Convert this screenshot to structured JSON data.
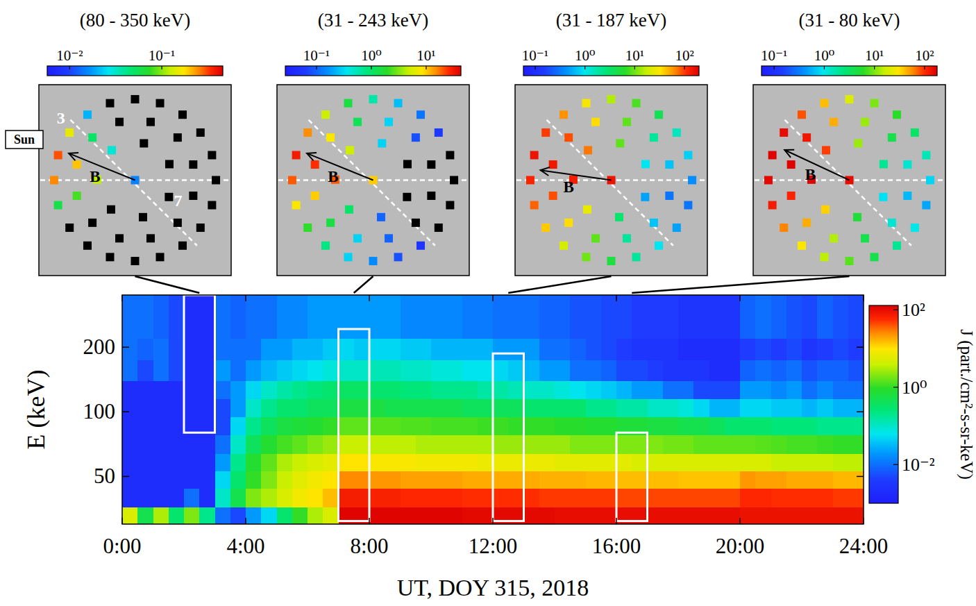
{
  "chart_data": [
    {
      "type": "heatmap",
      "xlabel": "UT, DOY 315, 2018",
      "ylabel": "E (keV)",
      "log": "y",
      "xlim": [
        0,
        24
      ],
      "xticks": [
        {
          "value": 0,
          "label": "0:00"
        },
        {
          "value": 4,
          "label": "4:00"
        },
        {
          "value": 8,
          "label": "8:00"
        },
        {
          "value": 12,
          "label": "12:00"
        },
        {
          "value": 16,
          "label": "16:00"
        },
        {
          "value": 20,
          "label": "20:00"
        },
        {
          "value": 24,
          "label": "24:00"
        }
      ],
      "ylim": [
        30,
        350
      ],
      "yticks": [
        50,
        100,
        200
      ],
      "x_edges": [
        0,
        0.5,
        1,
        1.5,
        2,
        2.5,
        3,
        3.5,
        4,
        4.5,
        5,
        5.5,
        6,
        6.5,
        7,
        7.5,
        8,
        8.5,
        9,
        9.5,
        10,
        10.5,
        11,
        11.5,
        12,
        12.5,
        13,
        13.5,
        14,
        14.5,
        15,
        15.5,
        16,
        16.5,
        17,
        17.5,
        18,
        18.5,
        19,
        19.5,
        20,
        20.5,
        21,
        21.5,
        22,
        22.5,
        23,
        23.5,
        24
      ],
      "y_edges": [
        30,
        36,
        44,
        53,
        64,
        78,
        95,
        115,
        140,
        175,
        220,
        350
      ],
      "cells": [
        [
          5,
          0.5,
          3,
          0.3,
          2,
          0.2,
          0.01,
          0.005,
          0.02,
          0.05,
          0.3,
          1,
          3,
          5,
          120,
          120,
          120,
          120,
          120,
          120,
          120,
          120,
          110,
          110,
          110,
          110,
          110,
          110,
          100,
          100,
          100,
          100,
          100,
          100,
          100,
          100,
          100,
          100,
          100,
          100,
          90,
          90,
          90,
          90,
          90,
          90,
          90,
          90
        ],
        [
          0.002,
          0.002,
          0.002,
          0.002,
          0.01,
          0.002,
          0.1,
          0.5,
          2,
          3,
          5,
          8,
          10,
          15,
          70,
          70,
          65,
          65,
          60,
          60,
          60,
          60,
          55,
          55,
          55,
          55,
          55,
          50,
          50,
          50,
          50,
          50,
          45,
          45,
          45,
          45,
          45,
          45,
          45,
          45,
          60,
          60,
          55,
          55,
          55,
          55,
          50,
          50
        ],
        [
          0.002,
          0.002,
          0.002,
          0.002,
          0.002,
          0.002,
          0.05,
          0.3,
          1,
          2,
          4,
          6,
          8,
          10,
          25,
          25,
          22,
          22,
          20,
          20,
          20,
          20,
          18,
          18,
          18,
          18,
          18,
          17,
          17,
          17,
          16,
          16,
          15,
          15,
          15,
          15,
          14,
          14,
          14,
          14,
          22,
          20,
          20,
          18,
          18,
          18,
          16,
          16
        ],
        [
          0.002,
          0.002,
          0.002,
          0.002,
          0.002,
          0.002,
          0.02,
          0.2,
          0.8,
          1.5,
          3,
          4,
          5,
          6,
          10,
          10,
          9,
          9,
          9,
          8,
          8,
          8,
          8,
          7,
          7,
          7,
          7,
          7,
          6,
          6,
          6,
          6,
          6,
          5,
          5,
          5,
          5,
          5,
          5,
          5,
          5,
          5,
          4,
          4,
          4,
          4,
          3.5,
          3.5
        ],
        [
          0.002,
          0.002,
          0.002,
          0.002,
          0.002,
          0.002,
          0.01,
          0.1,
          0.4,
          0.8,
          1.2,
          1.5,
          2,
          2.5,
          4,
          4,
          3.5,
          3.5,
          3.5,
          3,
          3,
          3,
          3,
          3,
          2.5,
          2.5,
          2.5,
          2.5,
          2.5,
          2,
          2,
          2,
          2,
          2,
          2,
          1.8,
          1.8,
          1.5,
          1.5,
          1.5,
          1.5,
          1.4,
          1.3,
          1.2,
          1.2,
          1.1,
          1,
          1
        ],
        [
          0.002,
          0.002,
          0.002,
          0.002,
          0.002,
          0.002,
          0.005,
          0.05,
          0.2,
          0.4,
          0.6,
          0.7,
          0.8,
          1,
          1.5,
          1.5,
          1.4,
          1.4,
          1.3,
          1.3,
          1.2,
          1.2,
          1.2,
          1.1,
          1.1,
          1,
          1,
          1,
          0.9,
          0.9,
          0.8,
          0.8,
          0.7,
          0.7,
          0.6,
          0.6,
          0.5,
          0.5,
          0.4,
          0.3,
          0.3,
          0.3,
          0.25,
          0.25,
          0.25,
          0.2,
          0.2,
          0.2
        ],
        [
          0.002,
          0.002,
          0.002,
          0.002,
          0.002,
          0.002,
          0.005,
          0.02,
          0.1,
          0.2,
          0.3,
          0.3,
          0.4,
          0.4,
          0.6,
          0.6,
          0.6,
          0.5,
          0.5,
          0.5,
          0.5,
          0.5,
          0.4,
          0.4,
          0.4,
          0.4,
          0.3,
          0.3,
          0.3,
          0.3,
          0.2,
          0.2,
          0.15,
          0.15,
          0.1,
          0.1,
          0.08,
          0.05,
          0.03,
          0.03,
          0.05,
          0.05,
          0.04,
          0.04,
          0.03,
          0.04,
          0.03,
          0.03
        ],
        [
          0.002,
          0.002,
          0.002,
          0.002,
          0.002,
          0.002,
          0.01,
          0.02,
          0.05,
          0.1,
          0.15,
          0.2,
          0.25,
          0.3,
          0.35,
          0.35,
          0.3,
          0.3,
          0.25,
          0.25,
          0.2,
          0.2,
          0.2,
          0.15,
          0.15,
          0.12,
          0.1,
          0.1,
          0.08,
          0.06,
          0.05,
          0.04,
          0.03,
          0.02,
          0.02,
          0.01,
          0.01,
          0.005,
          0.005,
          0.005,
          0.02,
          0.02,
          0.015,
          0.02,
          0.01,
          0.015,
          0.01,
          0.01
        ],
        [
          0.01,
          0.005,
          0.01,
          0.005,
          0.002,
          0.002,
          0.02,
          0.01,
          0.02,
          0.03,
          0.04,
          0.05,
          0.06,
          0.08,
          0.1,
          0.1,
          0.12,
          0.12,
          0.1,
          0.1,
          0.08,
          0.08,
          0.06,
          0.06,
          0.05,
          0.04,
          0.03,
          0.02,
          0.02,
          0.01,
          0.01,
          0.008,
          0.005,
          0.005,
          0.004,
          0.003,
          0.003,
          0.003,
          0.002,
          0.002,
          0.008,
          0.01,
          0.008,
          0.01,
          0.006,
          0.008,
          0.008,
          0.006
        ],
        [
          0.01,
          0.008,
          0.01,
          0.005,
          0.002,
          0.002,
          0.01,
          0.01,
          0.01,
          0.02,
          0.02,
          0.03,
          0.03,
          0.04,
          0.05,
          0.04,
          0.05,
          0.05,
          0.04,
          0.04,
          0.03,
          0.03,
          0.03,
          0.03,
          0.02,
          0.02,
          0.02,
          0.01,
          0.01,
          0.008,
          0.006,
          0.005,
          0.004,
          0.003,
          0.003,
          0.003,
          0.002,
          0.002,
          0.002,
          0.002,
          0.004,
          0.005,
          0.004,
          0.005,
          0.003,
          0.004,
          0.005,
          0.004
        ],
        [
          0.01,
          0.01,
          0.008,
          0.005,
          0.002,
          0.002,
          0.01,
          0.008,
          0.01,
          0.01,
          0.015,
          0.015,
          0.02,
          0.02,
          0.02,
          0.02,
          0.02,
          0.02,
          0.015,
          0.015,
          0.015,
          0.015,
          0.012,
          0.012,
          0.01,
          0.01,
          0.01,
          0.008,
          0.008,
          0.006,
          0.006,
          0.005,
          0.005,
          0.004,
          0.004,
          0.004,
          0.003,
          0.003,
          0.003,
          0.003,
          0.008,
          0.01,
          0.008,
          0.006,
          0.005,
          0.008,
          0.006,
          0.005
        ]
      ],
      "colorbar": {
        "label": "J (part./cm²-s-sr-keV)",
        "log": true,
        "lim": [
          0.001,
          130
        ],
        "ticks": [
          {
            "value": 0.01,
            "label": "10⁻²"
          },
          {
            "value": 1,
            "label": "10⁰"
          },
          {
            "value": 100,
            "label": "10²"
          }
        ]
      },
      "intervals": [
        {
          "start": 2,
          "end": 3,
          "emin": 80,
          "emax": 350
        },
        {
          "start": 7,
          "end": 8,
          "emin": 31,
          "emax": 243
        },
        {
          "start": 12,
          "end": 13,
          "emin": 31,
          "emax": 187
        },
        {
          "start": 16,
          "end": 17,
          "emin": 31,
          "emax": 80
        }
      ]
    },
    {
      "type": "sky_map",
      "title": "(80 - 350 keV)",
      "colorbar": {
        "log": true,
        "lim": [
          0.0057,
          0.46
        ],
        "ticks": [
          {
            "value": 0.01,
            "label": "10⁻²"
          },
          {
            "value": 0.1,
            "label": "10⁻¹"
          }
        ]
      },
      "values": [
        0,
        0,
        0,
        0,
        0,
        0,
        0,
        0.02,
        0.15,
        0.3,
        0.25,
        0.06,
        0,
        0,
        0,
        0,
        0,
        0,
        0,
        0,
        0,
        0,
        0,
        0,
        0.05,
        0.2,
        0.08,
        0,
        0,
        0,
        0,
        0,
        0,
        0,
        0.03,
        0.12,
        0,
        0,
        0,
        0.015
      ],
      "sun_label": "Sun",
      "pixel_labels": [
        "3",
        "7"
      ],
      "field_label": "B"
    },
    {
      "type": "sky_map",
      "title": "(31 - 243 keV)",
      "colorbar": {
        "log": true,
        "lim": [
          0.027,
          43
        ],
        "ticks": [
          {
            "value": 0.1,
            "label": "10⁻¹"
          },
          {
            "value": 1,
            "label": "10⁰"
          },
          {
            "value": 10,
            "label": "10¹"
          }
        ]
      },
      "values": [
        0,
        0,
        0.06,
        0.12,
        0.25,
        0.6,
        1.5,
        5,
        15,
        30,
        20,
        8,
        2,
        0.8,
        0.3,
        0.15,
        0.08,
        0.05,
        0,
        0,
        0,
        0.08,
        0.3,
        1.2,
        8,
        25,
        10,
        1.5,
        0.3,
        0.1,
        0,
        0,
        0,
        0.3,
        5,
        20,
        1,
        0.1,
        0,
        10
      ],
      "field_label": "B"
    },
    {
      "type": "sky_map",
      "title": "(31 - 187 keV)",
      "colorbar": {
        "log": true,
        "lim": [
          0.058,
          196
        ],
        "ticks": [
          {
            "value": 0.1,
            "label": "10⁻¹"
          },
          {
            "value": 1,
            "label": "10⁰"
          },
          {
            "value": 10,
            "label": "10¹"
          },
          {
            "value": 100,
            "label": "10²"
          }
        ]
      },
      "values": [
        0.4,
        0.8,
        1.5,
        4,
        8,
        15,
        30,
        60,
        100,
        150,
        120,
        80,
        40,
        20,
        10,
        5,
        2,
        1,
        0.5,
        0.3,
        0.7,
        2,
        9,
        35,
        90,
        140,
        90,
        35,
        9,
        2,
        0.7,
        0.3,
        1,
        9,
        70,
        130,
        25,
        3,
        0.5,
        150
      ],
      "field_label": "B"
    },
    {
      "type": "sky_map",
      "title": "(31 - 80 keV)",
      "colorbar": {
        "log": true,
        "lim": [
          0.056,
          178
        ],
        "ticks": [
          {
            "value": 0.1,
            "label": "10⁻¹"
          },
          {
            "value": 1,
            "label": "10⁰"
          },
          {
            "value": 10,
            "label": "10¹"
          },
          {
            "value": 100,
            "label": "10²"
          }
        ]
      },
      "values": [
        0.8,
        1.5,
        3,
        6,
        10,
        20,
        40,
        80,
        150,
        170,
        160,
        120,
        60,
        30,
        15,
        8,
        4,
        2,
        1,
        0.5,
        1.2,
        4,
        12,
        45,
        130,
        170,
        110,
        45,
        14,
        4,
        1.2,
        0.6,
        2,
        12,
        90,
        170,
        35,
        5,
        0.9,
        150
      ],
      "field_label": "B"
    }
  ]
}
